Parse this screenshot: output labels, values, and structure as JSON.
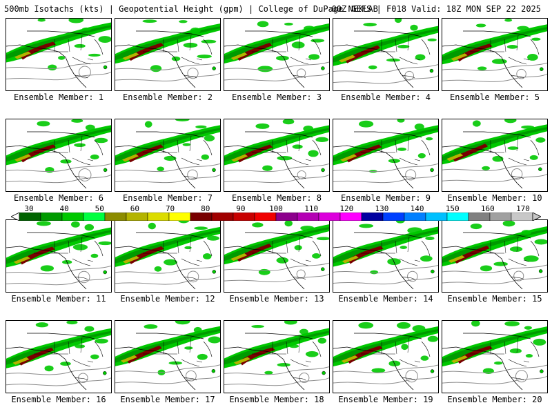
{
  "header": {
    "left": "500mb Isotachs (kts) | Geopotential Height (gpm) | College of DuPage NEXLAB",
    "right": "00Z GEFS | F018 Valid: 18Z MON SEP 22 2025"
  },
  "panels": [
    {
      "label": "Ensemble Member: 1"
    },
    {
      "label": "Ensemble Member: 2"
    },
    {
      "label": "Ensemble Member: 3"
    },
    {
      "label": "Ensemble Member: 4"
    },
    {
      "label": "Ensemble Member: 5"
    },
    {
      "label": "Ensemble Member: 6"
    },
    {
      "label": "Ensemble Member: 7"
    },
    {
      "label": "Ensemble Member: 8"
    },
    {
      "label": "Ensemble Member: 9"
    },
    {
      "label": "Ensemble Member: 10"
    },
    {
      "label": "Ensemble Member: 11"
    },
    {
      "label": "Ensemble Member: 12"
    },
    {
      "label": "Ensemble Member: 13"
    },
    {
      "label": "Ensemble Member: 14"
    },
    {
      "label": "Ensemble Member: 15"
    },
    {
      "label": "Ensemble Member: 16"
    },
    {
      "label": "Ensemble Member: 17"
    },
    {
      "label": "Ensemble Member: 18"
    },
    {
      "label": "Ensemble Member: 19"
    },
    {
      "label": "Ensemble Member: 20"
    }
  ],
  "colorbar": {
    "labels": [
      "30",
      "40",
      "50",
      "60",
      "70",
      "80",
      "90",
      "100",
      "110",
      "120",
      "130",
      "140",
      "150",
      "160",
      "170"
    ],
    "colors": [
      "#006400",
      "#009a00",
      "#00c800",
      "#00ff40",
      "#8c8c00",
      "#b4b400",
      "#dcdc00",
      "#ffff00",
      "#780000",
      "#a00000",
      "#c80000",
      "#f00000",
      "#8c008c",
      "#b400b4",
      "#dc00dc",
      "#ff00ff",
      "#0000a0",
      "#0040ff",
      "#0080ff",
      "#00c0ff",
      "#00ffff",
      "#808080",
      "#a0a0a0",
      "#c8c8c8"
    ]
  }
}
